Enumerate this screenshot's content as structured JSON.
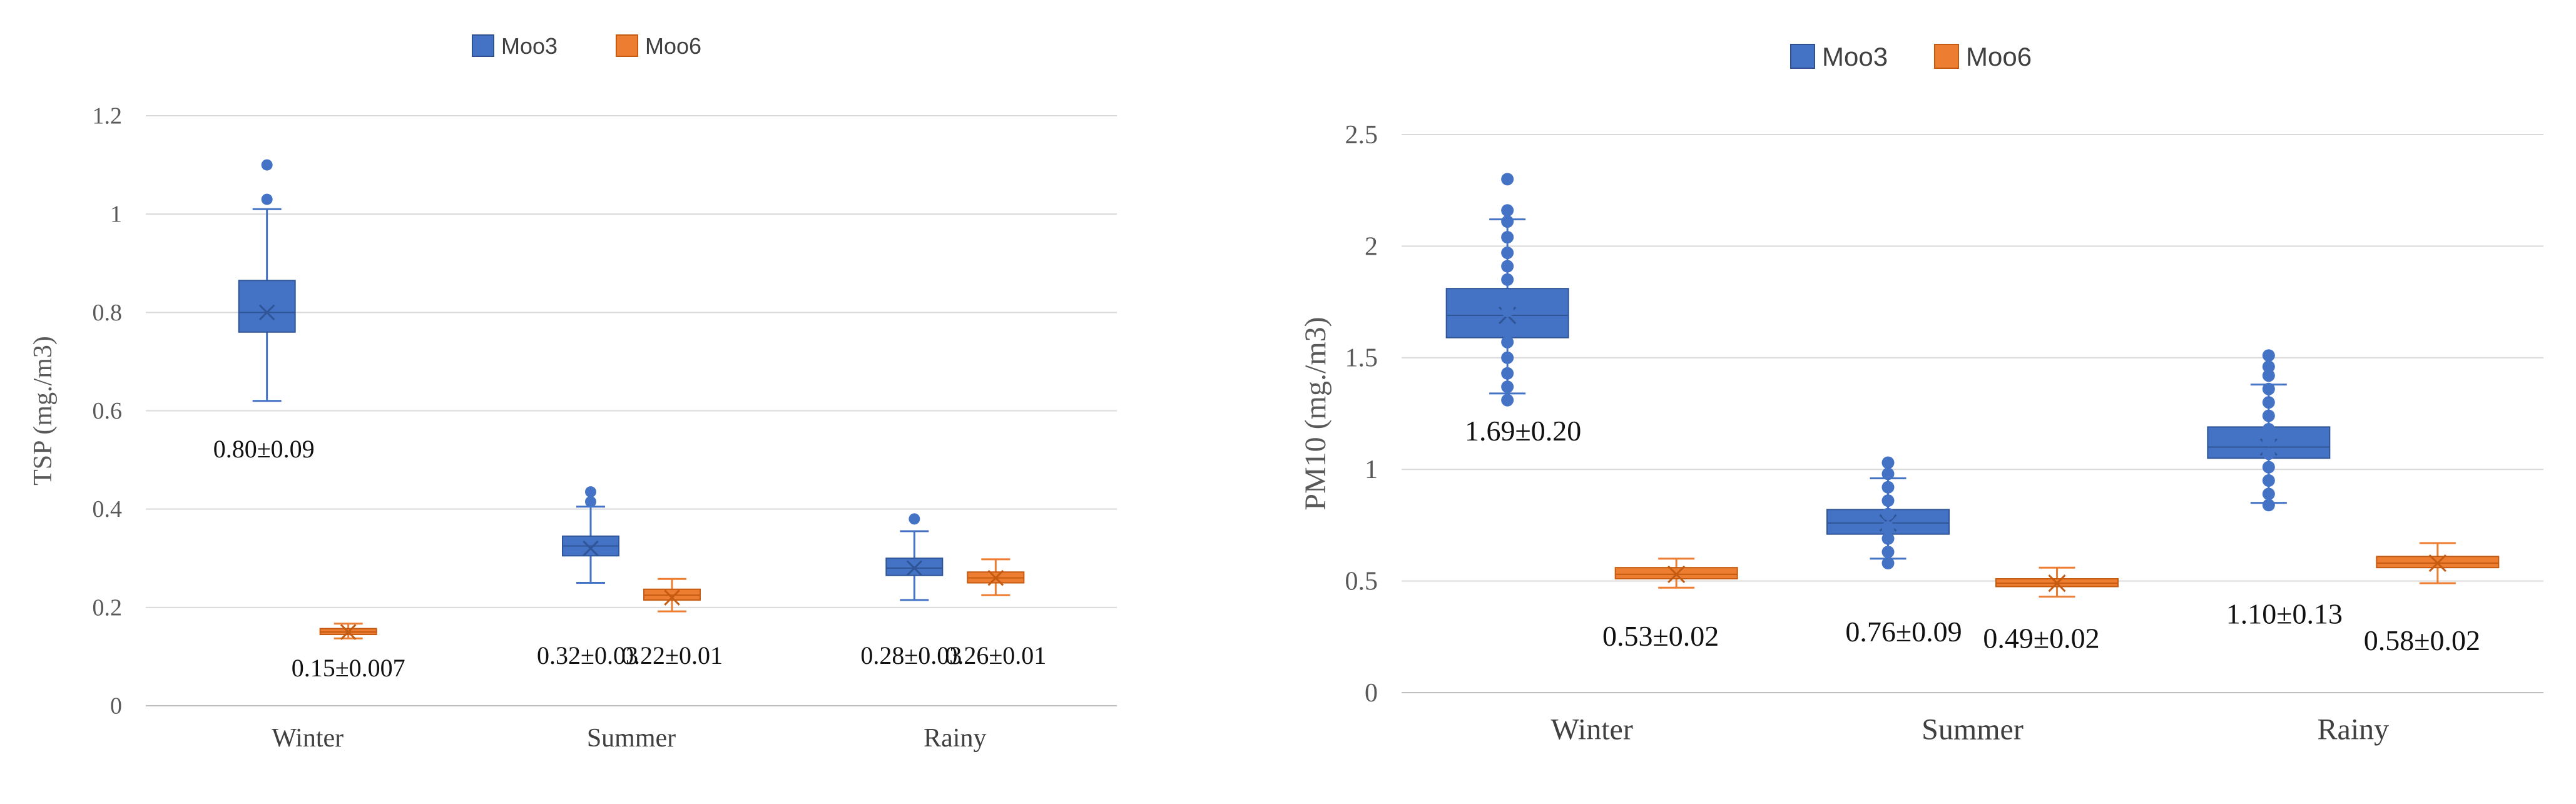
{
  "chart_data": [
    {
      "type": "box",
      "title": "",
      "xlabel": "",
      "ylabel": "TSP (mg./m3)",
      "ylim": [
        0,
        1.2
      ],
      "yticks": [
        "0",
        "0.2",
        "0.4",
        "0.6",
        "0.8",
        "1",
        "1.2"
      ],
      "categories": [
        "Winter",
        "Summer",
        "Rainy"
      ],
      "legend_position": "top",
      "series": [
        {
          "name": "Moo3",
          "color": "#4472C4",
          "boxes": [
            {
              "min": 0.62,
              "q1": 0.76,
              "median": 0.8,
              "q3": 0.865,
              "max": 1.01,
              "mean": 0.8,
              "outliers": [
                1.03,
                1.1
              ]
            },
            {
              "min": 0.25,
              "q1": 0.305,
              "median": 0.325,
              "q3": 0.345,
              "max": 0.405,
              "mean": 0.32,
              "outliers": [
                0.415,
                0.435
              ]
            },
            {
              "min": 0.215,
              "q1": 0.265,
              "median": 0.28,
              "q3": 0.3,
              "max": 0.355,
              "mean": 0.28,
              "outliers": [
                0.38
              ]
            }
          ]
        },
        {
          "name": "Moo6",
          "color": "#ED7D31",
          "boxes": [
            {
              "min": 0.137,
              "q1": 0.145,
              "median": 0.15,
              "q3": 0.157,
              "max": 0.167,
              "mean": 0.15,
              "outliers": []
            },
            {
              "min": 0.192,
              "q1": 0.215,
              "median": 0.225,
              "q3": 0.237,
              "max": 0.258,
              "mean": 0.22,
              "outliers": []
            },
            {
              "min": 0.225,
              "q1": 0.25,
              "median": 0.26,
              "q3": 0.272,
              "max": 0.298,
              "mean": 0.26,
              "outliers": []
            }
          ]
        }
      ],
      "annotations": [
        {
          "text": "0.80±0.09",
          "category": "Winter",
          "series": "Moo3",
          "value": 0.505
        },
        {
          "text": "0.15±0.007",
          "category": "Winter",
          "series": "Moo6",
          "value": 0.06
        },
        {
          "text": "0.32±0.03",
          "category": "Summer",
          "series": "Moo3",
          "value": 0.085
        },
        {
          "text": "0.22±0.01",
          "category": "Summer",
          "series": "Moo6",
          "value": 0.085
        },
        {
          "text": "0.28±0.03",
          "category": "Rainy",
          "series": "Moo3",
          "value": 0.085
        },
        {
          "text": "0.26±0.01",
          "category": "Rainy",
          "series": "Moo6",
          "value": 0.085
        }
      ]
    },
    {
      "type": "box",
      "title": "",
      "xlabel": "",
      "ylabel": "PM10 (mg./m3)",
      "ylim": [
        0,
        2.5
      ],
      "yticks": [
        "0",
        "0.5",
        "1",
        "1.5",
        "2",
        "2.5"
      ],
      "categories": [
        "Winter",
        "Summer",
        "Rainy"
      ],
      "legend_position": "top",
      "series": [
        {
          "name": "Moo3",
          "color": "#4472C4",
          "boxes": [
            {
              "min": 1.34,
              "q1": 1.59,
              "median": 1.69,
              "q3": 1.81,
              "max": 2.12,
              "mean": 1.69,
              "outliers": [
                1.31,
                1.37,
                1.43,
                1.5,
                1.57,
                1.64,
                1.71,
                1.78,
                1.85,
                1.91,
                1.97,
                2.04,
                2.11,
                2.16,
                2.3
              ]
            },
            {
              "min": 0.6,
              "q1": 0.71,
              "median": 0.76,
              "q3": 0.82,
              "max": 0.96,
              "mean": 0.76,
              "outliers": [
                0.58,
                0.63,
                0.69,
                0.74,
                0.8,
                0.86,
                0.92,
                0.98,
                1.03
              ]
            },
            {
              "min": 0.85,
              "q1": 1.05,
              "median": 1.1,
              "q3": 1.19,
              "max": 1.38,
              "mean": 1.1,
              "outliers": [
                0.84,
                0.89,
                0.95,
                1.01,
                1.07,
                1.13,
                1.18,
                1.24,
                1.3,
                1.36,
                1.42,
                1.46,
                1.51
              ]
            }
          ]
        },
        {
          "name": "Moo6",
          "color": "#ED7D31",
          "boxes": [
            {
              "min": 0.47,
              "q1": 0.51,
              "median": 0.53,
              "q3": 0.56,
              "max": 0.6,
              "mean": 0.53,
              "outliers": []
            },
            {
              "min": 0.43,
              "q1": 0.475,
              "median": 0.49,
              "q3": 0.51,
              "max": 0.56,
              "mean": 0.49,
              "outliers": []
            },
            {
              "min": 0.49,
              "q1": 0.56,
              "median": 0.58,
              "q3": 0.61,
              "max": 0.67,
              "mean": 0.58,
              "outliers": []
            }
          ]
        }
      ],
      "annotations": [
        {
          "text": "1.69±0.20",
          "category": "Winter",
          "series": "Moo3",
          "value": 1.13
        },
        {
          "text": "0.53±0.02",
          "category": "Winter",
          "series": "Moo6",
          "value": 0.21
        },
        {
          "text": "0.76±0.09",
          "category": "Summer",
          "series": "Moo3",
          "value": 0.23
        },
        {
          "text": "0.49±0.02",
          "category": "Summer",
          "series": "Moo6",
          "value": 0.2
        },
        {
          "text": "1.10±0.13",
          "category": "Rainy",
          "series": "Moo3",
          "value": 0.31
        },
        {
          "text": "0.58±0.02",
          "category": "Rainy",
          "series": "Moo6",
          "value": 0.19
        }
      ]
    }
  ]
}
